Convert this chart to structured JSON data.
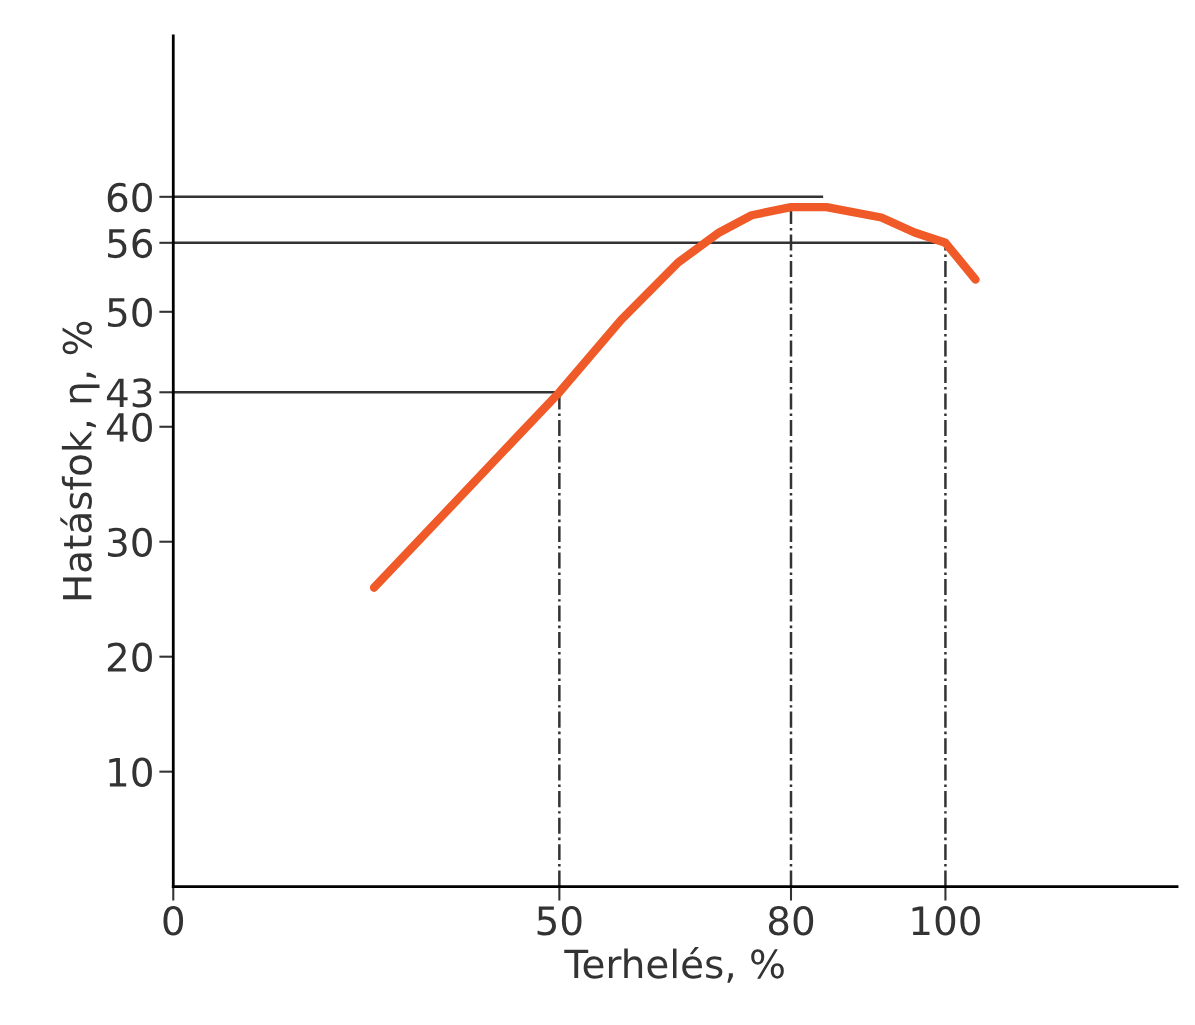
{
  "chart_data": {
    "type": "line",
    "xlabel": "Terhelés, %",
    "ylabel": "Hatásfok, η, %",
    "x": [
      26,
      50,
      58,
      65.4,
      70.7,
      74.9,
      80,
      84.6,
      91.7,
      96,
      100,
      103.9
    ],
    "series": [
      {
        "color": "#f05a28",
        "values": [
          26,
          43,
          49.3,
          54.3,
          56.9,
          58.4,
          59.1,
          59.1,
          58.2,
          56.9,
          56,
          52.8
        ]
      }
    ],
    "xlim": [
      0,
      130
    ],
    "ylim": [
      0,
      74
    ],
    "xticks": [
      0,
      50,
      80,
      100
    ],
    "yticks": [
      10,
      20,
      30,
      40,
      43,
      50,
      56,
      60
    ],
    "ref_lines": [
      {
        "axis": "y",
        "value": 43,
        "color": "#333333",
        "line_style": "solid"
      },
      {
        "axis": "y",
        "value": 56,
        "color": "#333333",
        "line_style": "solid"
      },
      {
        "axis": "y",
        "value": 60,
        "color": "#333333",
        "line_style": "solid"
      },
      {
        "axis": "x",
        "value": 50,
        "color": "#333333",
        "line_style": "dashdot"
      },
      {
        "axis": "x",
        "value": 80,
        "color": "#333333",
        "line_style": "dashdot"
      },
      {
        "axis": "x",
        "value": 100,
        "color": "#333333",
        "line_style": "dashdot"
      }
    ],
    "grid": false,
    "marker": "none",
    "line_style": "solid"
  }
}
